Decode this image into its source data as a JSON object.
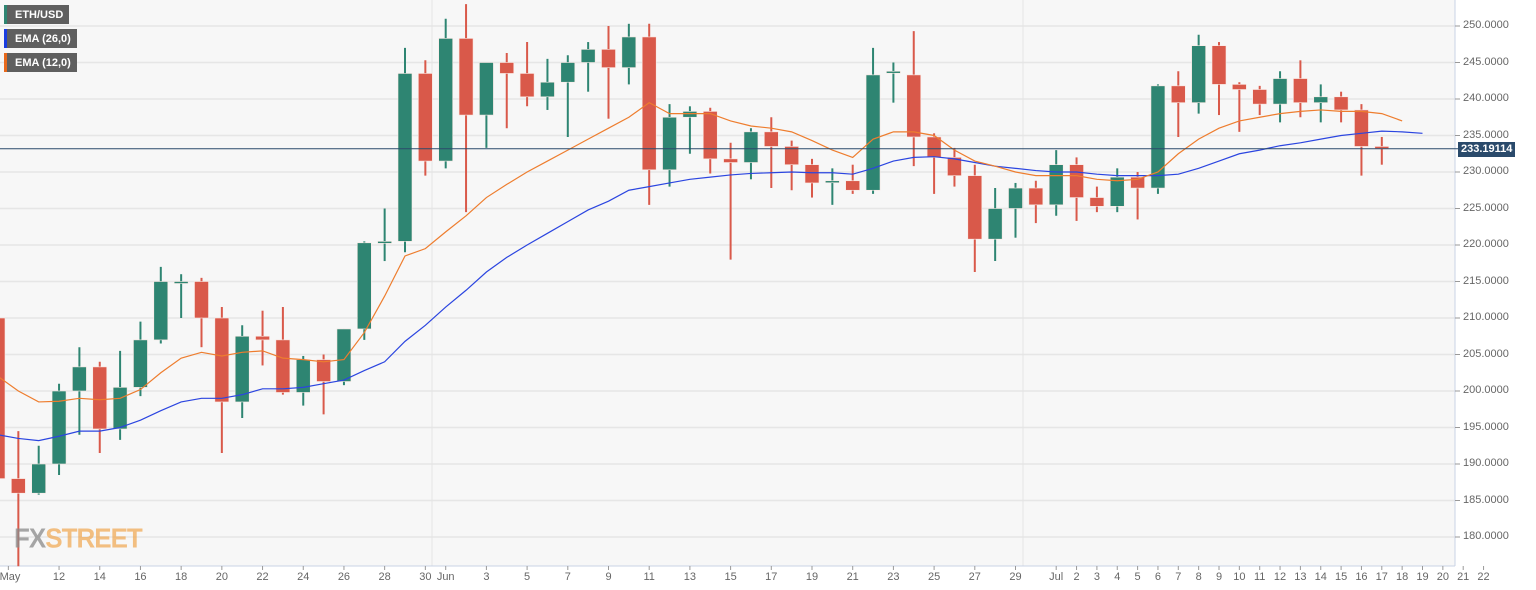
{
  "legend": [
    {
      "label": "ETH/USD",
      "color": "#2e8572"
    },
    {
      "label": "EMA (26,0)",
      "color": "#1a3de0"
    },
    {
      "label": "EMA (12,0)",
      "color": "#e8691c"
    }
  ],
  "current_price": "233.19114",
  "watermark": {
    "fx": "FX",
    "street": "STREET"
  },
  "colors": {
    "up": "#2e8572",
    "down": "#d9594a",
    "ema26": "#2b45e0",
    "ema12": "#ee7d2e",
    "price_line": "#2a4a6b",
    "grid": "#e6e6e6",
    "plot_bg": "#f7f7f7"
  },
  "chart_data": {
    "type": "candlestick",
    "title": "ETH/USD",
    "xlabel": "",
    "ylabel": "",
    "ylim": [
      176,
      253
    ],
    "y_ticks": [
      "250.0000",
      "245.0000",
      "240.0000",
      "235.0000",
      "230.0000",
      "225.0000",
      "220.0000",
      "215.0000",
      "210.0000",
      "205.0000",
      "200.0000",
      "195.0000",
      "190.0000",
      "185.0000",
      "180.0000"
    ],
    "x_ticks": [
      "May",
      "12",
      "14",
      "16",
      "18",
      "20",
      "22",
      "24",
      "26",
      "28",
      "30",
      "Jun",
      "3",
      "5",
      "7",
      "9",
      "11",
      "13",
      "15",
      "17",
      "19",
      "21",
      "23",
      "25",
      "27",
      "29",
      "Jul",
      "2",
      "3",
      "4",
      "5",
      "6",
      "7",
      "8",
      "9",
      "10",
      "11",
      "12",
      "13",
      "14",
      "15",
      "16",
      "17",
      "18",
      "19",
      "20",
      "21",
      "22"
    ],
    "grid": true,
    "legend_position": "top-left",
    "current_price_line": 233.19114,
    "candles": [
      {
        "date": "May 10",
        "o": 210.0,
        "h": 211.0,
        "l": 185.0,
        "c": 188.0
      },
      {
        "date": "May 11",
        "o": 188.0,
        "h": 194.5,
        "l": 176.0,
        "c": 186.0
      },
      {
        "date": "May 12",
        "o": 186.0,
        "h": 192.5,
        "l": 185.8,
        "c": 190.0
      },
      {
        "date": "May 13",
        "o": 190.0,
        "h": 201.0,
        "l": 188.5,
        "c": 200.0
      },
      {
        "date": "May 14",
        "o": 200.0,
        "h": 206.0,
        "l": 194.0,
        "c": 203.3
      },
      {
        "date": "May 15",
        "o": 203.3,
        "h": 204.0,
        "l": 191.5,
        "c": 194.8
      },
      {
        "date": "May 16",
        "o": 194.8,
        "h": 205.5,
        "l": 193.3,
        "c": 200.5
      },
      {
        "date": "May 17",
        "o": 200.5,
        "h": 209.5,
        "l": 199.3,
        "c": 207.0
      },
      {
        "date": "May 18",
        "o": 207.0,
        "h": 217.0,
        "l": 206.5,
        "c": 215.0
      },
      {
        "date": "May 19",
        "o": 215.0,
        "h": 216.0,
        "l": 210.0,
        "c": 215.0
      },
      {
        "date": "May 20",
        "o": 215.0,
        "h": 215.5,
        "l": 206.0,
        "c": 210.0
      },
      {
        "date": "May 21",
        "o": 210.0,
        "h": 211.5,
        "l": 191.5,
        "c": 198.5
      },
      {
        "date": "May 22",
        "o": 198.5,
        "h": 209.0,
        "l": 196.3,
        "c": 207.5
      },
      {
        "date": "May 23",
        "o": 207.5,
        "h": 211.0,
        "l": 203.5,
        "c": 207.0
      },
      {
        "date": "May 24",
        "o": 207.0,
        "h": 211.5,
        "l": 199.5,
        "c": 199.8
      },
      {
        "date": "May 25",
        "o": 199.8,
        "h": 204.8,
        "l": 198.0,
        "c": 204.3
      },
      {
        "date": "May 26",
        "o": 204.3,
        "h": 205.0,
        "l": 196.8,
        "c": 201.3
      },
      {
        "date": "May 27",
        "o": 201.3,
        "h": 208.5,
        "l": 200.8,
        "c": 208.5
      },
      {
        "date": "May 28",
        "o": 208.5,
        "h": 220.5,
        "l": 207.0,
        "c": 220.3
      },
      {
        "date": "May 29",
        "o": 220.3,
        "h": 225.0,
        "l": 217.8,
        "c": 220.5
      },
      {
        "date": "May 30",
        "o": 220.5,
        "h": 247.0,
        "l": 219.0,
        "c": 243.5
      },
      {
        "date": "May 31",
        "o": 243.5,
        "h": 245.3,
        "l": 229.5,
        "c": 231.5
      },
      {
        "date": "Jun 1",
        "o": 231.5,
        "h": 251.0,
        "l": 230.5,
        "c": 248.3
      },
      {
        "date": "Jun 2",
        "o": 248.3,
        "h": 253.0,
        "l": 224.5,
        "c": 237.8
      },
      {
        "date": "Jun 3",
        "o": 237.8,
        "h": 245.0,
        "l": 233.3,
        "c": 245.0
      },
      {
        "date": "Jun 4",
        "o": 245.0,
        "h": 246.3,
        "l": 236.0,
        "c": 243.5
      },
      {
        "date": "Jun 5",
        "o": 243.5,
        "h": 247.8,
        "l": 239.0,
        "c": 240.3
      },
      {
        "date": "Jun 6",
        "o": 240.3,
        "h": 245.5,
        "l": 238.5,
        "c": 242.3
      },
      {
        "date": "Jun 7",
        "o": 242.3,
        "h": 246.0,
        "l": 234.8,
        "c": 245.0
      },
      {
        "date": "Jun 8",
        "o": 245.0,
        "h": 247.8,
        "l": 241.0,
        "c": 246.8
      },
      {
        "date": "Jun 9",
        "o": 246.8,
        "h": 250.0,
        "l": 237.3,
        "c": 244.3
      },
      {
        "date": "Jun 10",
        "o": 244.3,
        "h": 250.3,
        "l": 242.0,
        "c": 248.5
      },
      {
        "date": "Jun 11",
        "o": 248.5,
        "h": 250.3,
        "l": 225.5,
        "c": 230.3
      },
      {
        "date": "Jun 12",
        "o": 230.3,
        "h": 239.3,
        "l": 228.0,
        "c": 237.5
      },
      {
        "date": "Jun 13",
        "o": 237.5,
        "h": 239.0,
        "l": 232.5,
        "c": 238.3
      },
      {
        "date": "Jun 14",
        "o": 238.3,
        "h": 238.8,
        "l": 229.8,
        "c": 231.8
      },
      {
        "date": "Jun 15",
        "o": 231.8,
        "h": 234.0,
        "l": 218.0,
        "c": 231.3
      },
      {
        "date": "Jun 16",
        "o": 231.3,
        "h": 236.0,
        "l": 229.0,
        "c": 235.5
      },
      {
        "date": "Jun 17",
        "o": 235.5,
        "h": 237.5,
        "l": 227.8,
        "c": 233.5
      },
      {
        "date": "Jun 18",
        "o": 233.5,
        "h": 234.3,
        "l": 227.5,
        "c": 231.0
      },
      {
        "date": "Jun 19",
        "o": 231.0,
        "h": 231.8,
        "l": 226.5,
        "c": 228.5
      },
      {
        "date": "Jun 20",
        "o": 228.8,
        "h": 230.5,
        "l": 225.5,
        "c": 228.8
      },
      {
        "date": "Jun 21",
        "o": 228.8,
        "h": 231.0,
        "l": 227.0,
        "c": 227.5
      },
      {
        "date": "Jun 22",
        "o": 227.5,
        "h": 247.0,
        "l": 227.0,
        "c": 243.3
      },
      {
        "date": "Jun 23",
        "o": 243.8,
        "h": 245.0,
        "l": 239.5,
        "c": 243.8
      },
      {
        "date": "Jun 24",
        "o": 243.3,
        "h": 249.3,
        "l": 230.8,
        "c": 234.8
      },
      {
        "date": "Jun 25",
        "o": 234.8,
        "h": 235.3,
        "l": 227.0,
        "c": 232.0
      },
      {
        "date": "Jun 26",
        "o": 232.0,
        "h": 233.3,
        "l": 228.0,
        "c": 229.5
      },
      {
        "date": "Jun 27",
        "o": 229.5,
        "h": 231.0,
        "l": 216.3,
        "c": 220.8
      },
      {
        "date": "Jun 28",
        "o": 220.8,
        "h": 227.8,
        "l": 217.8,
        "c": 225.0
      },
      {
        "date": "Jun 29",
        "o": 225.0,
        "h": 228.5,
        "l": 221.0,
        "c": 227.8
      },
      {
        "date": "Jun 30",
        "o": 227.8,
        "h": 228.8,
        "l": 223.0,
        "c": 225.5
      },
      {
        "date": "Jul 1",
        "o": 225.5,
        "h": 233.0,
        "l": 224.0,
        "c": 231.0
      },
      {
        "date": "Jul 2",
        "o": 231.0,
        "h": 232.0,
        "l": 223.3,
        "c": 226.5
      },
      {
        "date": "Jul 3",
        "o": 226.5,
        "h": 228.0,
        "l": 224.5,
        "c": 225.3
      },
      {
        "date": "Jul 4",
        "o": 225.3,
        "h": 230.5,
        "l": 224.5,
        "c": 229.3
      },
      {
        "date": "Jul 5",
        "o": 229.3,
        "h": 230.0,
        "l": 223.5,
        "c": 227.8
      },
      {
        "date": "Jul 6",
        "o": 227.8,
        "h": 242.0,
        "l": 227.0,
        "c": 241.8
      },
      {
        "date": "Jul 7",
        "o": 241.8,
        "h": 243.8,
        "l": 234.8,
        "c": 239.5
      },
      {
        "date": "Jul 8",
        "o": 239.5,
        "h": 248.8,
        "l": 238.0,
        "c": 247.3
      },
      {
        "date": "Jul 9",
        "o": 247.3,
        "h": 247.8,
        "l": 237.8,
        "c": 242.0
      },
      {
        "date": "Jul 10",
        "o": 242.0,
        "h": 242.3,
        "l": 235.5,
        "c": 241.3
      },
      {
        "date": "Jul 11",
        "o": 241.3,
        "h": 241.8,
        "l": 237.8,
        "c": 239.3
      },
      {
        "date": "Jul 12",
        "o": 239.3,
        "h": 243.8,
        "l": 236.8,
        "c": 242.8
      },
      {
        "date": "Jul 13",
        "o": 242.8,
        "h": 245.3,
        "l": 237.5,
        "c": 239.5
      },
      {
        "date": "Jul 14",
        "o": 239.5,
        "h": 242.0,
        "l": 236.8,
        "c": 240.3
      },
      {
        "date": "Jul 15",
        "o": 240.3,
        "h": 241.0,
        "l": 236.8,
        "c": 238.5
      },
      {
        "date": "Jul 16",
        "o": 238.5,
        "h": 239.3,
        "l": 229.5,
        "c": 233.5
      },
      {
        "date": "Jul 17",
        "o": 233.5,
        "h": 234.8,
        "l": 231.0,
        "c": 233.2
      }
    ],
    "series": [
      {
        "name": "EMA (26,0)",
        "values": [
          194.0,
          193.5,
          193.2,
          193.8,
          194.5,
          194.5,
          195.0,
          196.0,
          197.3,
          198.5,
          199.0,
          199.0,
          199.5,
          200.3,
          200.3,
          200.5,
          201.0,
          201.5,
          202.8,
          204.0,
          206.8,
          209.0,
          211.5,
          213.8,
          216.3,
          218.3,
          220.0,
          221.6,
          223.2,
          224.8,
          226.0,
          227.5,
          228.0,
          228.5,
          229.0,
          229.3,
          229.6,
          229.8,
          229.9,
          230.0,
          229.9,
          229.9,
          229.7,
          230.5,
          231.5,
          232.0,
          232.1,
          231.8,
          231.3,
          230.8,
          230.5,
          230.2,
          230.0,
          230.0,
          229.7,
          229.5,
          229.5,
          229.5,
          229.7,
          230.5,
          231.5,
          232.5,
          233.0,
          233.6,
          234.0,
          234.5,
          235.0,
          235.3,
          235.6,
          235.5,
          235.3
        ]
      },
      {
        "name": "EMA (12,0)",
        "values": [
          202.0,
          200.0,
          198.5,
          198.6,
          199.0,
          198.8,
          199.0,
          200.2,
          202.5,
          204.5,
          205.3,
          204.8,
          205.3,
          205.5,
          204.5,
          204.3,
          204.0,
          204.3,
          208.0,
          213.0,
          218.5,
          219.5,
          221.8,
          224.0,
          226.5,
          228.3,
          230.0,
          231.5,
          233.0,
          234.5,
          236.0,
          237.5,
          239.5,
          238.0,
          238.0,
          238.0,
          237.0,
          236.3,
          236.0,
          235.5,
          234.3,
          233.0,
          232.0,
          234.5,
          235.5,
          235.5,
          235.0,
          233.0,
          231.5,
          230.8,
          230.0,
          229.5,
          229.5,
          229.5,
          229.0,
          228.8,
          229.0,
          230.0,
          232.5,
          234.5,
          236.0,
          237.0,
          237.5,
          238.0,
          238.3,
          238.5,
          238.3,
          238.3,
          238.0,
          237.0
        ]
      }
    ]
  }
}
